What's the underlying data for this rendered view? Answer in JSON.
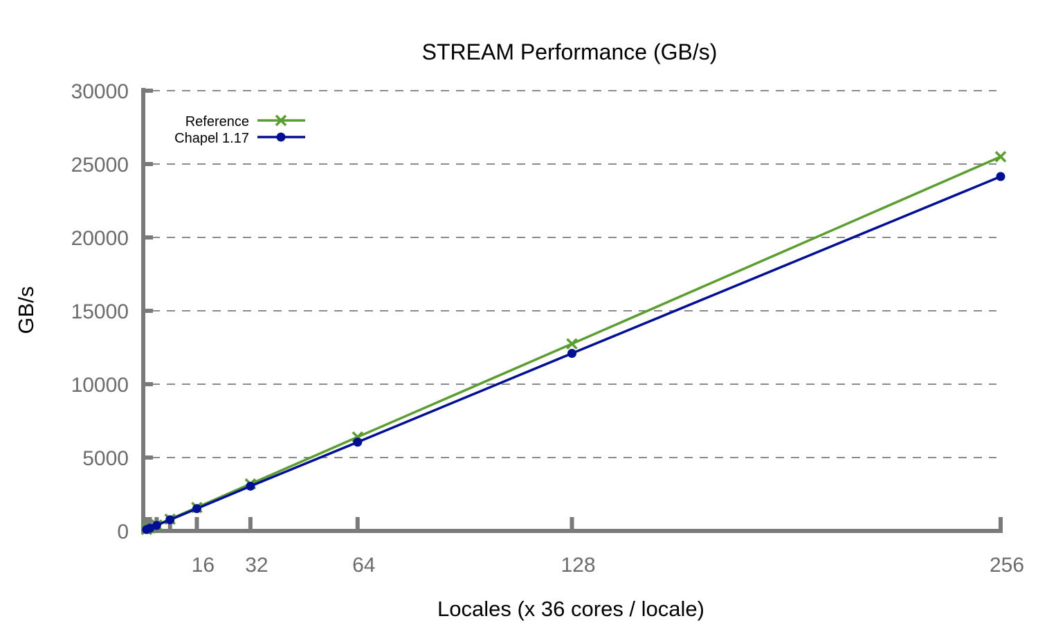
{
  "chart_data": {
    "type": "line",
    "title": "STREAM Performance (GB/s)",
    "xlabel": "Locales (x 36 cores / locale)",
    "ylabel": "GB/s",
    "xlim": [
      0,
      256
    ],
    "ylim": [
      0,
      30000
    ],
    "x_ticks": [
      16,
      32,
      64,
      128,
      256
    ],
    "x_tick_labels": [
      "16",
      "32",
      "64",
      "128",
      "256"
    ],
    "y_ticks": [
      0,
      5000,
      10000,
      15000,
      20000,
      25000,
      30000
    ],
    "y_tick_labels": [
      "0",
      "5000",
      "10000",
      "15000",
      "20000",
      "25000",
      "30000"
    ],
    "grid": "horizontal-dashed",
    "legend_position": "top-left",
    "x": [
      1,
      2,
      4,
      8,
      16,
      32,
      64,
      128,
      256
    ],
    "series": [
      {
        "name": "Reference",
        "color": "#5a9e2f",
        "marker": "x",
        "values": [
          100,
          200,
          400,
          800,
          1600,
          3200,
          6400,
          12750,
          25500
        ]
      },
      {
        "name": "Chapel 1.17",
        "color": "#000f96",
        "marker": "circle",
        "values": [
          95,
          190,
          380,
          760,
          1520,
          3050,
          6050,
          12100,
          24150
        ]
      }
    ]
  }
}
